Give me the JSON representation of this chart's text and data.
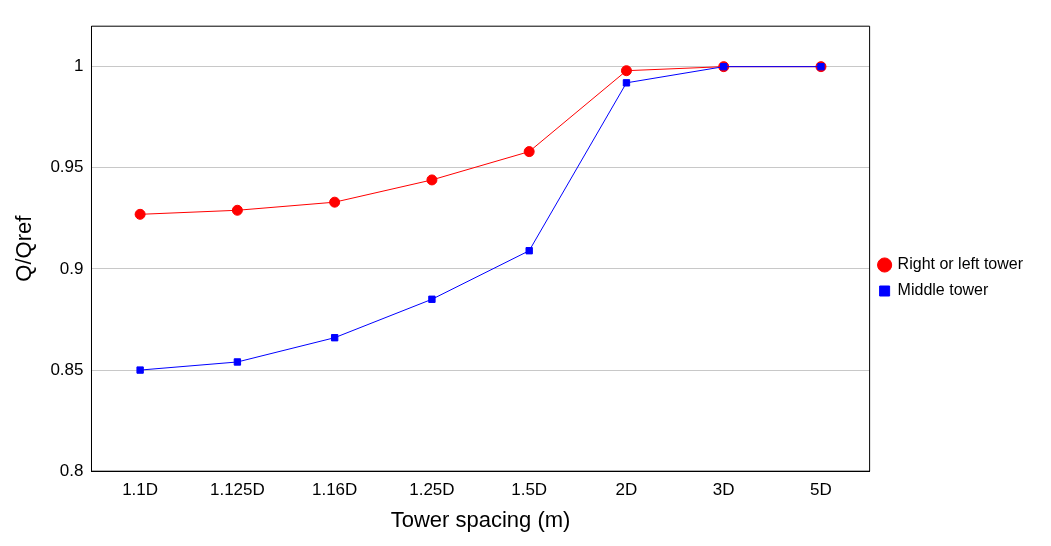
{
  "chart_data": {
    "type": "line",
    "xlabel": "Tower spacing (m)",
    "ylabel": "Q/Qref",
    "categories": [
      "1.1D",
      "1.125D",
      "1.16D",
      "1.25D",
      "1.5D",
      "2D",
      "3D",
      "5D"
    ],
    "series": [
      {
        "name": "Right or left tower",
        "color": "#ff0000",
        "marker": "circle",
        "values": [
          0.927,
          0.929,
          0.933,
          0.944,
          0.958,
          0.998,
          1,
          1
        ]
      },
      {
        "name": "Middle tower",
        "color": "#0000ff",
        "marker": "square",
        "values": [
          0.85,
          0.854,
          0.866,
          0.885,
          0.909,
          0.992,
          1,
          1
        ]
      }
    ],
    "ylim": [
      0.8,
      1.02
    ],
    "yticks": [
      0.8,
      0.85,
      0.9,
      0.95,
      1
    ],
    "grid": "y",
    "legend": "right",
    "line_style": "solid"
  }
}
